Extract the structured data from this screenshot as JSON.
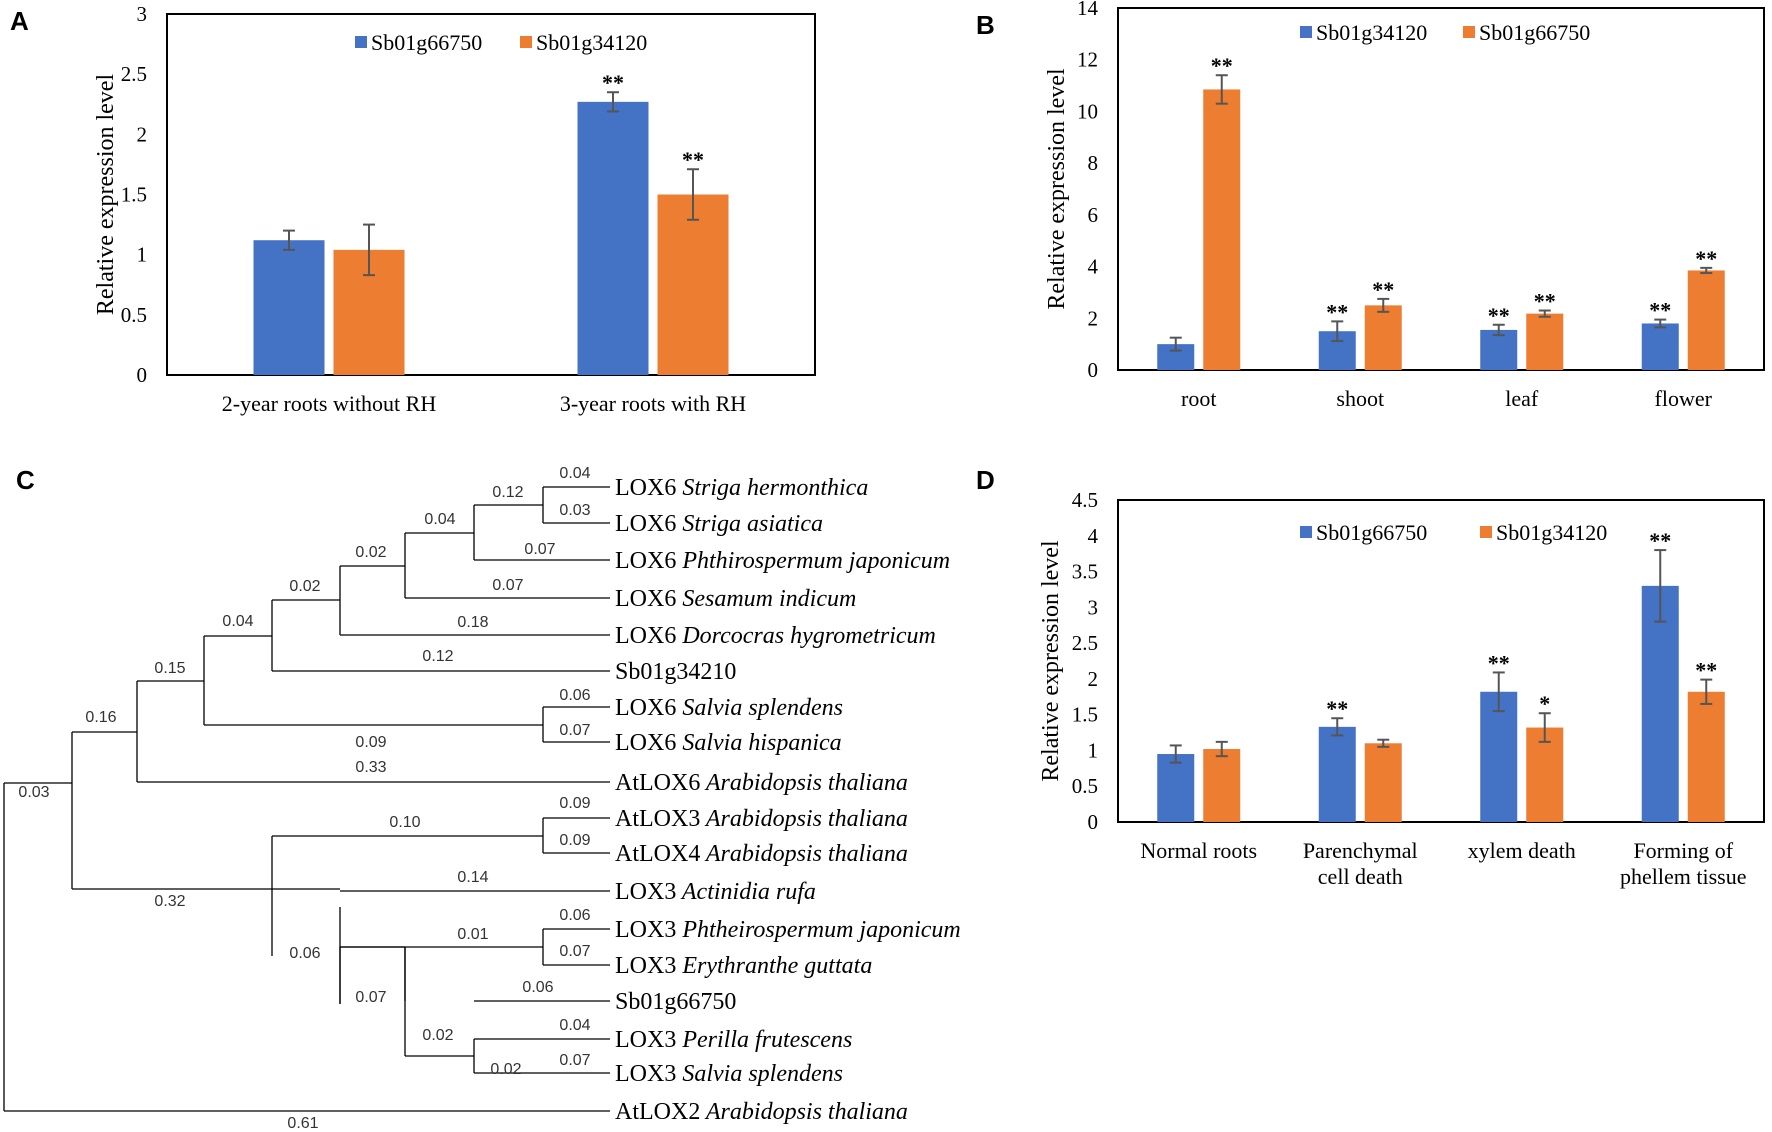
{
  "panels": {
    "a": "A",
    "b": "B",
    "c": "C",
    "d": "D"
  },
  "colors": {
    "series_blue": "#4472C4",
    "series_orange": "#ED7D31",
    "axis": "#000000",
    "error_bar": "#555555"
  },
  "chart_data": [
    {
      "id": "A",
      "type": "bar",
      "title": "",
      "xlabel": "",
      "ylabel": "Relative expression level",
      "ylim": [
        0,
        3
      ],
      "yticks": [
        "0",
        "0.5",
        "1",
        "1.5",
        "2",
        "2.5",
        "3"
      ],
      "categories": [
        "2-year roots without RH",
        "3-year roots with RH"
      ],
      "series": [
        {
          "name": "Sb01g66750",
          "color": "#4472C4",
          "values": [
            1.12,
            2.27
          ],
          "errors": [
            0.08,
            0.08
          ],
          "labels": [
            "",
            "**"
          ]
        },
        {
          "name": "Sb01g34120",
          "color": "#ED7D31",
          "values": [
            1.04,
            1.5
          ],
          "errors": [
            0.21,
            0.21
          ],
          "labels": [
            "",
            "**"
          ]
        }
      ],
      "legend": "top-center"
    },
    {
      "id": "B",
      "type": "bar",
      "title": "",
      "xlabel": "",
      "ylabel": "Relative expression level",
      "ylim": [
        0,
        14
      ],
      "yticks": [
        "0",
        "2",
        "4",
        "6",
        "8",
        "10",
        "12",
        "14"
      ],
      "categories": [
        "root",
        "shoot",
        "leaf",
        "flower"
      ],
      "series": [
        {
          "name": "Sb01g34120",
          "color": "#4472C4",
          "values": [
            1.0,
            1.5,
            1.55,
            1.8
          ],
          "errors": [
            0.25,
            0.38,
            0.2,
            0.15
          ],
          "labels": [
            "",
            "**",
            "**",
            "**"
          ]
        },
        {
          "name": "Sb01g66750",
          "color": "#ED7D31",
          "values": [
            10.85,
            2.5,
            2.18,
            3.85
          ],
          "errors": [
            0.55,
            0.25,
            0.12,
            0.1
          ],
          "labels": [
            "**",
            "**",
            "**",
            "**"
          ]
        }
      ],
      "legend": "top-center"
    },
    {
      "id": "D",
      "type": "bar",
      "title": "",
      "xlabel": "",
      "ylabel": "Relative expression level",
      "ylim": [
        0,
        4.5
      ],
      "yticks": [
        "0",
        "0.5",
        "1",
        "1.5",
        "2",
        "2.5",
        "3",
        "3.5",
        "4",
        "4.5"
      ],
      "categories": [
        [
          "Normal roots"
        ],
        [
          "Parenchymal",
          "cell death"
        ],
        [
          "xylem death"
        ],
        [
          "Forming of",
          "phellem tissue"
        ]
      ],
      "series": [
        {
          "name": "Sb01g66750",
          "color": "#4472C4",
          "values": [
            0.95,
            1.33,
            1.82,
            3.3
          ],
          "errors": [
            0.12,
            0.12,
            0.27,
            0.5
          ],
          "labels": [
            "",
            "**",
            "**",
            "**"
          ]
        },
        {
          "name": "Sb01g34120",
          "color": "#ED7D31",
          "values": [
            1.02,
            1.1,
            1.32,
            1.82
          ],
          "errors": [
            0.1,
            0.05,
            0.2,
            0.17
          ],
          "labels": [
            "",
            "",
            "*",
            "**"
          ]
        }
      ],
      "legend": "top-center"
    }
  ],
  "tree": {
    "taxa": [
      {
        "prefix": "LOX6",
        "species": "Striga hermonthica"
      },
      {
        "prefix": "LOX6",
        "species": "Striga asiatica"
      },
      {
        "prefix": "LOX6",
        "species": "Phthirospermum japonicum"
      },
      {
        "prefix": "LOX6",
        "species": "Sesamum indicum"
      },
      {
        "prefix": "LOX6",
        "species": "Dorcocras hygrometricum"
      },
      {
        "prefix": "Sb01g34210",
        "species": ""
      },
      {
        "prefix": "LOX6",
        "species": "Salvia splendens"
      },
      {
        "prefix": "LOX6",
        "species": "Salvia hispanica"
      },
      {
        "prefix": "AtLOX6",
        "species": "Arabidopsis thaliana"
      },
      {
        "prefix": "AtLOX3",
        "species": "Arabidopsis thaliana"
      },
      {
        "prefix": "AtLOX4",
        "species": "Arabidopsis thaliana"
      },
      {
        "prefix": "LOX3",
        "species": "Actinidia rufa"
      },
      {
        "prefix": "LOX3",
        "species": "Phtheirospermum japonicum"
      },
      {
        "prefix": "LOX3",
        "species": "Erythranthe guttata"
      },
      {
        "prefix": "Sb01g66750",
        "species": ""
      },
      {
        "prefix": "LOX3",
        "species": "Perilla frutescens"
      },
      {
        "prefix": "LOX3",
        "species": "Salvia splendens"
      },
      {
        "prefix": "AtLOX2",
        "species": "Arabidopsis thaliana"
      }
    ],
    "branch_lengths": [
      "0.04",
      "0.03",
      "0.12",
      "0.07",
      "0.04",
      "0.07",
      "0.02",
      "0.18",
      "0.02",
      "0.12",
      "0.04",
      "0.06",
      "0.07",
      "0.09",
      "0.15",
      "0.33",
      "0.16",
      "0.09",
      "0.09",
      "0.10",
      "0.14",
      "0.06",
      "0.07",
      "0.01",
      "0.06",
      "0.04",
      "0.07",
      "0.02",
      "0.02",
      "0.07",
      "0.06",
      "0.32",
      "0.03",
      "0.61"
    ]
  }
}
